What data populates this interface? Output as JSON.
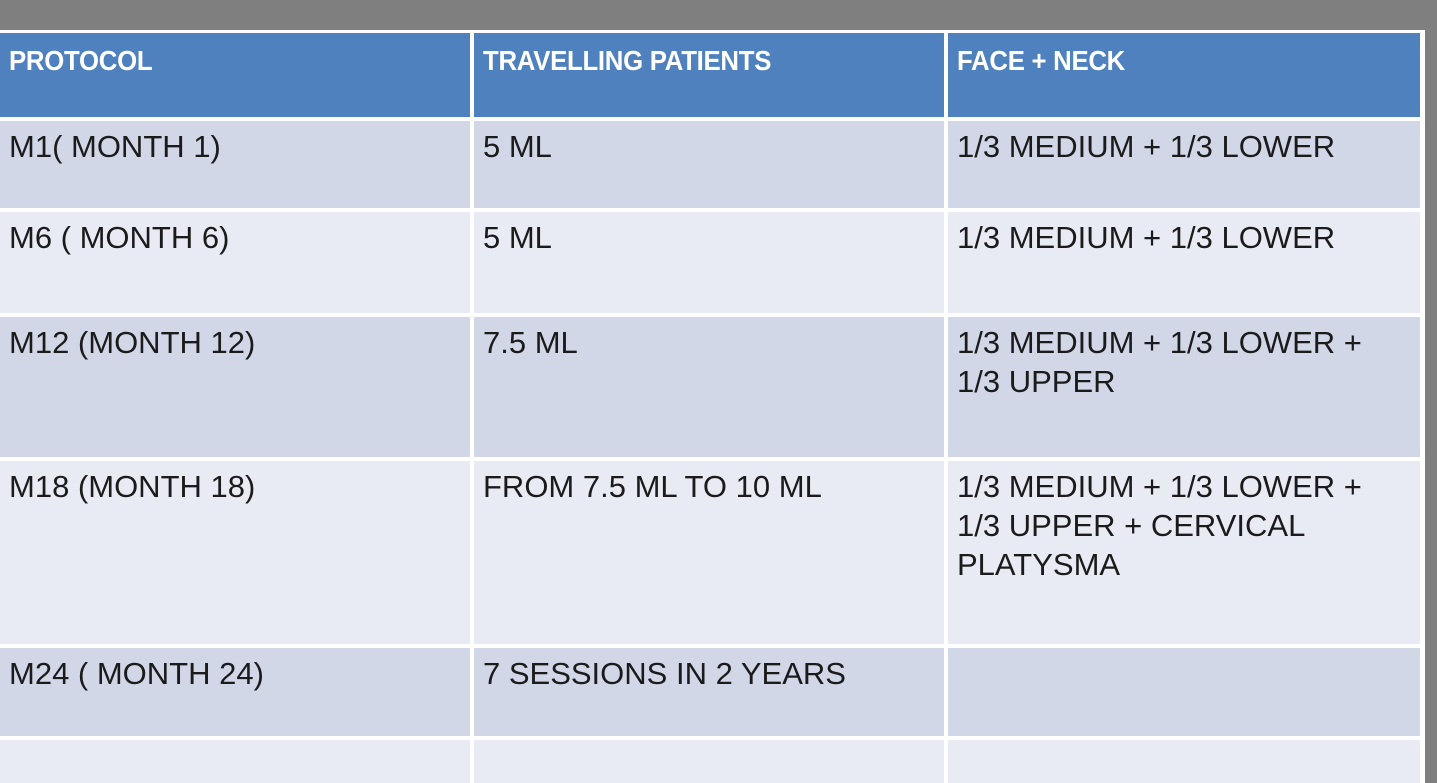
{
  "colors": {
    "page_background": "#7f7f7f",
    "grid_line": "#ffffff",
    "header_background": "#4e81bd",
    "header_text": "#ffffff",
    "band_dark": "#d2d7e8",
    "band_light": "#e9ebf4",
    "body_text": "#1b1b1b"
  },
  "table": {
    "columns": [
      "PROTOCOL",
      "TRAVELLING PATIENTS",
      "FACE + NECK"
    ],
    "rows": [
      {
        "protocol": "M1( MONTH 1)",
        "travelling_patients": "5 ML",
        "face_neck": "1/3 MEDIUM + 1/3 LOWER"
      },
      {
        "protocol": "M6 ( MONTH 6)",
        "travelling_patients": "5 ML",
        "face_neck": "1/3 MEDIUM + 1/3 LOWER"
      },
      {
        "protocol": "M12 (MONTH 12)",
        "travelling_patients": "7.5 ML",
        "face_neck": "1/3 MEDIUM + 1/3 LOWER + 1/3 UPPER"
      },
      {
        "protocol": "M18 (MONTH 18)",
        "travelling_patients": "FROM 7.5 ML TO 10 ML",
        "face_neck": "1/3 MEDIUM + 1/3 LOWER + 1/3 UPPER + CERVICAL PLATYSMA"
      },
      {
        "protocol": "M24 ( MONTH 24)",
        "travelling_patients": "7 SESSIONS IN 2 YEARS",
        "face_neck": ""
      },
      {
        "protocol": "",
        "travelling_patients": "",
        "face_neck": ""
      }
    ]
  }
}
